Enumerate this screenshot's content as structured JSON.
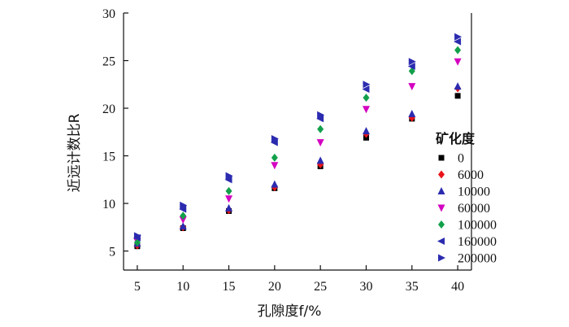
{
  "chart_data": {
    "type": "scatter",
    "xlabel": "孔隙度f/%",
    "ylabel": "近远计数比R",
    "xlim": [
      3.5,
      41.5
    ],
    "ylim": [
      3,
      30
    ],
    "xticks": [
      5,
      10,
      15,
      20,
      25,
      30,
      35,
      40
    ],
    "yticks": [
      5,
      10,
      15,
      20,
      25,
      30
    ],
    "legend_title": "矿化度",
    "legend_position": "right",
    "x": [
      5,
      10,
      15,
      20,
      25,
      30,
      35,
      40
    ],
    "series": [
      {
        "name": "0",
        "marker": "square",
        "color": "#000000",
        "values": [
          5.5,
          7.4,
          9.2,
          11.6,
          13.9,
          16.9,
          18.9,
          21.3
        ]
      },
      {
        "name": "6000",
        "marker": "diamond",
        "color": "#e8141a",
        "values": [
          5.6,
          7.5,
          9.3,
          11.7,
          14.1,
          17.3,
          19.0,
          22.1
        ]
      },
      {
        "name": "10000",
        "marker": "triangle-up",
        "color": "#2b2bb0",
        "values": [
          5.8,
          7.6,
          9.5,
          12.0,
          14.5,
          17.6,
          19.4,
          22.3
        ]
      },
      {
        "name": "60000",
        "marker": "triangle-down",
        "color": "#d400c0",
        "values": [
          6.0,
          8.3,
          10.5,
          14.0,
          16.4,
          19.9,
          22.3,
          24.9
        ]
      },
      {
        "name": "100000",
        "marker": "diamond",
        "color": "#12a04a",
        "values": [
          5.9,
          8.7,
          11.3,
          14.8,
          17.8,
          21.1,
          23.9,
          26.1
        ]
      },
      {
        "name": "160000",
        "marker": "triangle-left",
        "color": "#2b2bb0",
        "values": [
          6.4,
          9.4,
          12.5,
          16.4,
          18.9,
          22.0,
          24.4,
          27.0
        ]
      },
      {
        "name": "200000",
        "marker": "triangle-right",
        "color": "#2b2bb0",
        "values": [
          6.6,
          9.8,
          12.9,
          16.8,
          19.3,
          22.5,
          24.9,
          27.5
        ]
      }
    ]
  }
}
